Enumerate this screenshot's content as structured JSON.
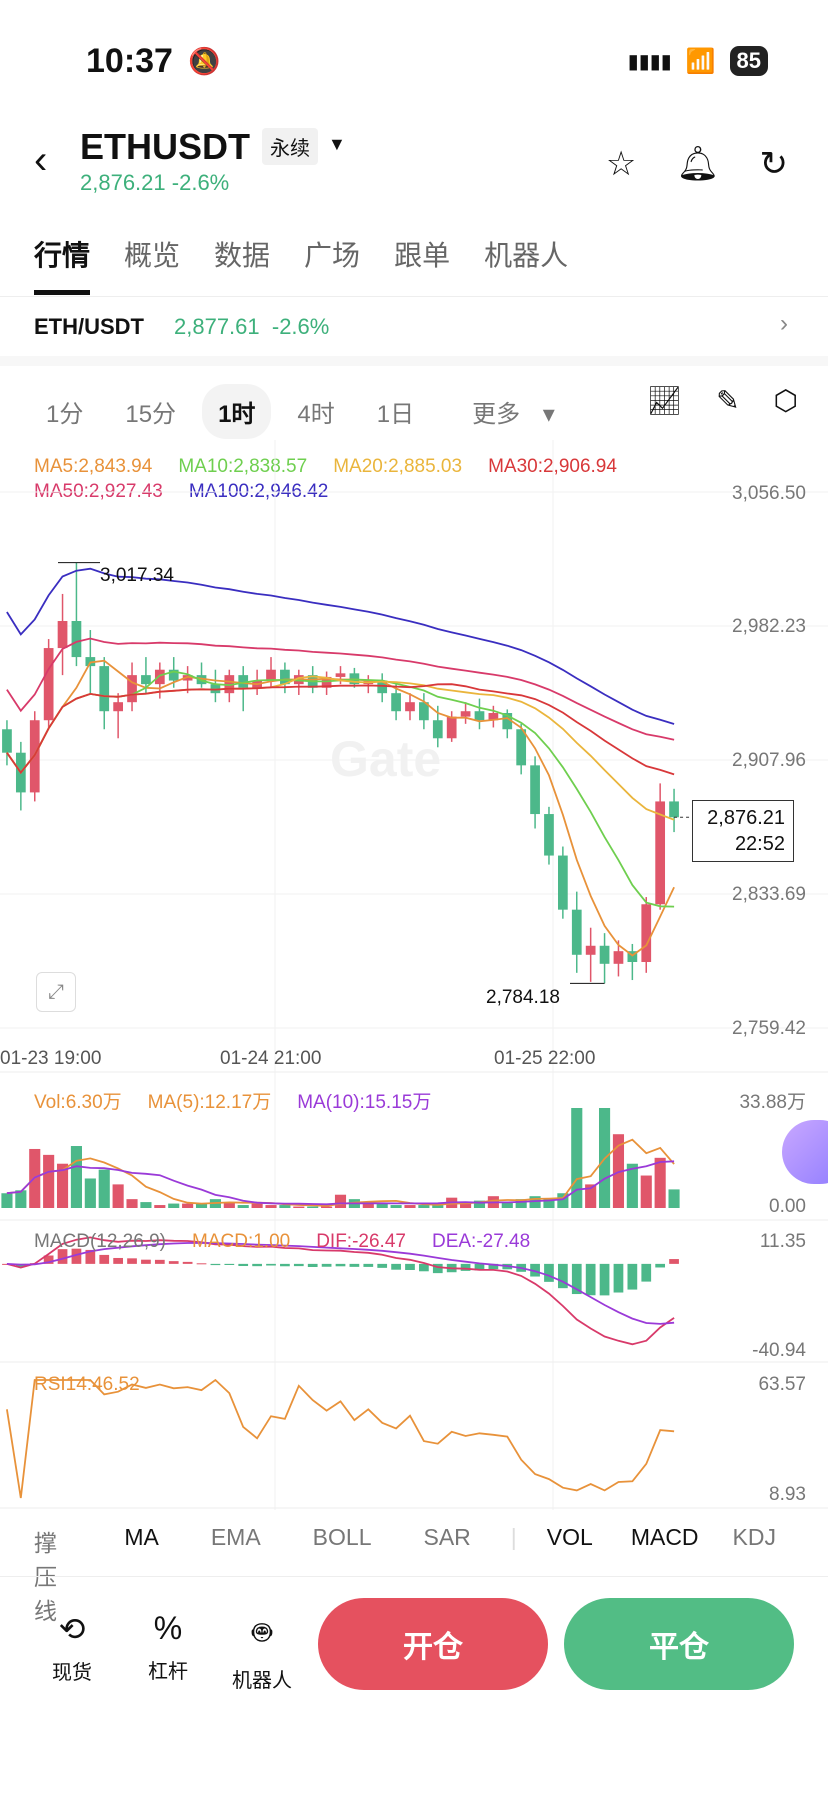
{
  "status": {
    "time": "10:37",
    "battery": "85"
  },
  "header": {
    "symbol": "ETHUSDT",
    "contract_type": "永续",
    "last_price": "2,876.21",
    "change": "-2.6%"
  },
  "tabs": [
    "行情",
    "概览",
    "数据",
    "广场",
    "跟单",
    "机器人"
  ],
  "pair": {
    "name": "ETH/USDT",
    "price": "2,877.61",
    "change": "-2.6%"
  },
  "intervals": [
    "1分",
    "15分",
    "1时",
    "4时",
    "1日",
    "更多"
  ],
  "active_interval": "1时",
  "ma_legend": [
    {
      "text": "MA5:2,843.94",
      "color": "#e8923a"
    },
    {
      "text": "MA10:2,838.57",
      "color": "#6fcf4f"
    },
    {
      "text": "MA20:2,885.03",
      "color": "#eab53c"
    },
    {
      "text": "MA30:2,906.94",
      "color": "#d8383a"
    },
    {
      "text": "MA50:2,927.43",
      "color": "#d83a6a"
    },
    {
      "text": "MA100:2,946.42",
      "color": "#3a2ec0"
    }
  ],
  "price_axis": [
    "3,056.50",
    "2,982.23",
    "2,907.96",
    "2,833.69",
    "2,759.42"
  ],
  "time_axis": [
    "01-23 19:00",
    "01-24 21:00",
    "01-25 22:00"
  ],
  "high_marker": "3,017.34",
  "low_marker": "2,784.18",
  "current": {
    "price": "2,876.21",
    "countdown": "22:52"
  },
  "watermark": "Gate",
  "volume": {
    "legend": [
      {
        "text": "Vol:6.30万",
        "color": "#e8923a"
      },
      {
        "text": "MA(5):12.17万",
        "color": "#e8923a"
      },
      {
        "text": "MA(10):15.15万",
        "color": "#9a3ad8"
      }
    ],
    "axis": [
      "33.88万",
      "0.00"
    ]
  },
  "macd": {
    "legend": [
      {
        "text": "MACD(12,26,9)",
        "color": "#777"
      },
      {
        "text": "MACD:1.00",
        "color": "#e8923a"
      },
      {
        "text": "DIF:-26.47",
        "color": "#d83a6a"
      },
      {
        "text": "DEA:-27.48",
        "color": "#9a3ad8"
      }
    ],
    "axis": [
      "11.35",
      "-40.94"
    ]
  },
  "rsi": {
    "legend": "RSI14:46.52",
    "axis": [
      "63.57",
      "8.93"
    ]
  },
  "indicator_tabs": [
    "撑压线",
    "MA",
    "EMA",
    "BOLL",
    "SAR",
    "VOL",
    "MACD",
    "KDJ"
  ],
  "bottom": {
    "spot": "现货",
    "leverage": "杠杆",
    "bot": "机器人",
    "open": "开仓",
    "close": "平仓"
  },
  "colors": {
    "up": "#e0566a",
    "down": "#4cb88a",
    "open_btn": "#e5515f",
    "close_btn": "#52bd85"
  },
  "chart_data": {
    "type": "candlestick",
    "ylim": [
      2759.42,
      3056.5
    ],
    "ohlc": [
      [
        2925,
        2930,
        2905,
        2912
      ],
      [
        2912,
        2918,
        2880,
        2890
      ],
      [
        2890,
        2935,
        2885,
        2930
      ],
      [
        2930,
        2975,
        2925,
        2970
      ],
      [
        2970,
        3000,
        2955,
        2985
      ],
      [
        2985,
        3017.34,
        2960,
        2965
      ],
      [
        2965,
        2980,
        2945,
        2960
      ],
      [
        2960,
        2965,
        2925,
        2935
      ],
      [
        2935,
        2945,
        2920,
        2940
      ],
      [
        2940,
        2962,
        2935,
        2955
      ],
      [
        2955,
        2965,
        2945,
        2950
      ],
      [
        2950,
        2962,
        2942,
        2958
      ],
      [
        2958,
        2965,
        2948,
        2952
      ],
      [
        2952,
        2960,
        2945,
        2955
      ],
      [
        2955,
        2962,
        2948,
        2950
      ],
      [
        2950,
        2958,
        2940,
        2945
      ],
      [
        2945,
        2958,
        2940,
        2955
      ],
      [
        2955,
        2960,
        2935,
        2948
      ],
      [
        2948,
        2958,
        2944,
        2952
      ],
      [
        2952,
        2965,
        2948,
        2958
      ],
      [
        2958,
        2962,
        2945,
        2950
      ],
      [
        2950,
        2958,
        2944,
        2955
      ],
      [
        2955,
        2960,
        2945,
        2948
      ],
      [
        2948,
        2957,
        2944,
        2954
      ],
      [
        2954,
        2960,
        2950,
        2956
      ],
      [
        2956,
        2959,
        2948,
        2950
      ],
      [
        2950,
        2955,
        2945,
        2952
      ],
      [
        2952,
        2956,
        2940,
        2945
      ],
      [
        2945,
        2950,
        2930,
        2935
      ],
      [
        2935,
        2945,
        2930,
        2940
      ],
      [
        2940,
        2945,
        2925,
        2930
      ],
      [
        2930,
        2938,
        2915,
        2920
      ],
      [
        2920,
        2935,
        2918,
        2932
      ],
      [
        2932,
        2940,
        2928,
        2935
      ],
      [
        2935,
        2942,
        2925,
        2930
      ],
      [
        2930,
        2938,
        2926,
        2934
      ],
      [
        2934,
        2936,
        2920,
        2925
      ],
      [
        2925,
        2928,
        2900,
        2905
      ],
      [
        2905,
        2910,
        2870,
        2878
      ],
      [
        2878,
        2882,
        2850,
        2855
      ],
      [
        2855,
        2860,
        2820,
        2825
      ],
      [
        2825,
        2835,
        2790,
        2800
      ],
      [
        2800,
        2815,
        2785,
        2805
      ],
      [
        2805,
        2812,
        2784.18,
        2795
      ],
      [
        2795,
        2808,
        2788,
        2802
      ],
      [
        2802,
        2806,
        2786,
        2796
      ],
      [
        2796,
        2832,
        2790,
        2828
      ],
      [
        2828,
        2895,
        2825,
        2885
      ],
      [
        2885,
        2892,
        2868,
        2876.21
      ]
    ],
    "volume": [
      5,
      6,
      20,
      18,
      15,
      21,
      10,
      13,
      8,
      3,
      2,
      1,
      1.5,
      1.5,
      1.5,
      3,
      2,
      1,
      1.5,
      1,
      1,
      0.5,
      0.5,
      0.5,
      4.5,
      3,
      2,
      1.5,
      1,
      1,
      1,
      1,
      3.5,
      1.5,
      2.5,
      4,
      2,
      3,
      4,
      3,
      5,
      33.88,
      8,
      33.88,
      25,
      15,
      11,
      17,
      6.3
    ],
    "vol_ylim": [
      0,
      33.88
    ],
    "macd_ylim": [
      -40.94,
      11.35
    ],
    "rsi_ylim": [
      8.93,
      63.57
    ]
  }
}
